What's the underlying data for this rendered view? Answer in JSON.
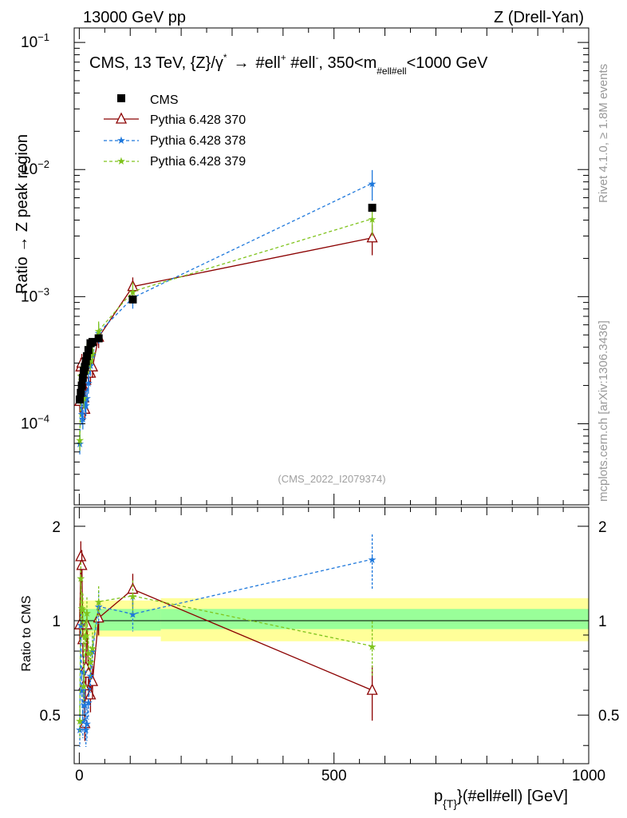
{
  "header": {
    "left": "13000 GeV pp",
    "right": "Z (Drell-Yan)"
  },
  "side": {
    "rivet": "Rivet 4.1.0, ≥ 1.8M events",
    "mcplots": "mcplots.cern.ch [arXiv:1306.3436]"
  },
  "colors": {
    "cms": "#000000",
    "py370": "#8b0000",
    "py378": "#1e78dc",
    "py379": "#7fc31c",
    "band_inner": "#99ff99",
    "band_outer": "#ffff99"
  },
  "chart_data": [
    {
      "type": "line",
      "panel": "main",
      "title": "CMS, 13 TeV, {Z}/γ* → #ell⁺ #ell⁻, 350<m_{#ell#ell}<1000 GeV",
      "title_parts": {
        "prefix": "CMS, 13 TeV, {Z}/γ",
        "star": "*",
        "arrow": "→",
        "mid": "#ell",
        "sup1": "+",
        "mid2": " #ell",
        "sup2": "-",
        "rest": ", 350<m",
        "sub": "#ell#ell",
        "tail": "<1000 GeV"
      },
      "ylabel": "Ratio → Z peak region",
      "yscale": "log",
      "ylim": [
        2.3e-05,
        0.13
      ],
      "xlim": [
        -10,
        1000
      ],
      "y_ticks": [
        {
          "value": 0.1,
          "base": "10",
          "exp": "−1"
        },
        {
          "value": 0.01,
          "base": "10",
          "exp": "−2"
        },
        {
          "value": 0.001,
          "base": "10",
          "exp": "−3"
        },
        {
          "value": 0.0001,
          "base": "10",
          "exp": "−4"
        }
      ],
      "watermark": "(CMS_2022_I2079374)",
      "legend_position": "top-left",
      "x": [
        1,
        3,
        5,
        7,
        9,
        11,
        13,
        15,
        18,
        22,
        26,
        38,
        105,
        575
      ],
      "series": [
        {
          "name": "CMS",
          "key": "cms",
          "style": "square",
          "values": [
            0.000155,
            0.000175,
            0.0002,
            0.00023,
            0.00026,
            0.00028,
            0.00031,
            0.00034,
            0.00038,
            0.00043,
            0.00044,
            0.00047,
            0.00095,
            0.005
          ]
        },
        {
          "name": "Pythia 6.428 370",
          "key": "py370",
          "style": "triangle",
          "values": [
            0.00015,
            0.00028,
            0.0003,
            0.0002,
            0.00016,
            0.00013,
            0.00022,
            0.00033,
            0.00026,
            0.00025,
            0.00028,
            0.00048,
            0.0012,
            0.0029
          ]
        },
        {
          "name": "Pythia 6.428 378",
          "key": "py378",
          "style": "star-dashed",
          "values": [
            7e-05,
            0.00017,
            0.00012,
            0.00011,
            0.00018,
            0.00015,
            0.00014,
            0.00016,
            0.00021,
            0.00029,
            0.00035,
            0.00052,
            0.00098,
            0.0078
          ]
        },
        {
          "name": "Pythia 6.428 379",
          "key": "py379",
          "style": "star-dashed",
          "values": [
            7.5e-05,
            0.00024,
            0.00022,
            0.00025,
            0.00016,
            0.00025,
            0.00028,
            0.00036,
            0.0003,
            0.00032,
            0.00036,
            0.00054,
            0.0011,
            0.0041
          ]
        }
      ]
    },
    {
      "type": "line",
      "panel": "ratio",
      "ylabel": "Ratio to CMS",
      "xlabel": "p_{T}(#ell#ell) [GeV]",
      "xlabel_parts": {
        "p": "p",
        "sub": "{T}",
        "rest": "}(#ell#ell) [GeV]"
      },
      "ylim": [
        0.35,
        2.3
      ],
      "xlim": [
        -10,
        1000
      ],
      "y_ticks": [
        "0.5",
        "1",
        "2"
      ],
      "x_ticks": [
        "0",
        "500",
        "1000"
      ],
      "band_edges": [
        0,
        160,
        1000
      ],
      "band_inner": [
        [
          0.93,
          1.09
        ],
        [
          0.94,
          1.09
        ]
      ],
      "band_outer": [
        [
          0.89,
          1.16
        ],
        [
          0.86,
          1.18
        ]
      ],
      "x": [
        1,
        3,
        5,
        7,
        9,
        11,
        13,
        15,
        18,
        22,
        26,
        38,
        105,
        575
      ],
      "series": [
        {
          "name": "Pythia 6.428 370",
          "key": "py370",
          "values": [
            0.97,
            1.6,
            1.5,
            0.87,
            0.62,
            0.47,
            0.71,
            0.97,
            0.68,
            0.58,
            0.64,
            1.02,
            1.26,
            0.6
          ]
        },
        {
          "name": "Pythia 6.428 378",
          "key": "py378",
          "values": [
            0.45,
            0.97,
            0.6,
            0.48,
            0.69,
            0.54,
            0.45,
            0.47,
            0.55,
            0.67,
            0.8,
            1.11,
            1.05,
            1.57
          ]
        },
        {
          "name": "Pythia 6.428 379",
          "key": "py379",
          "values": [
            0.48,
            1.37,
            1.1,
            1.09,
            0.62,
            0.89,
            0.9,
            1.06,
            0.79,
            0.74,
            0.82,
            1.15,
            1.2,
            0.83
          ]
        }
      ]
    }
  ]
}
